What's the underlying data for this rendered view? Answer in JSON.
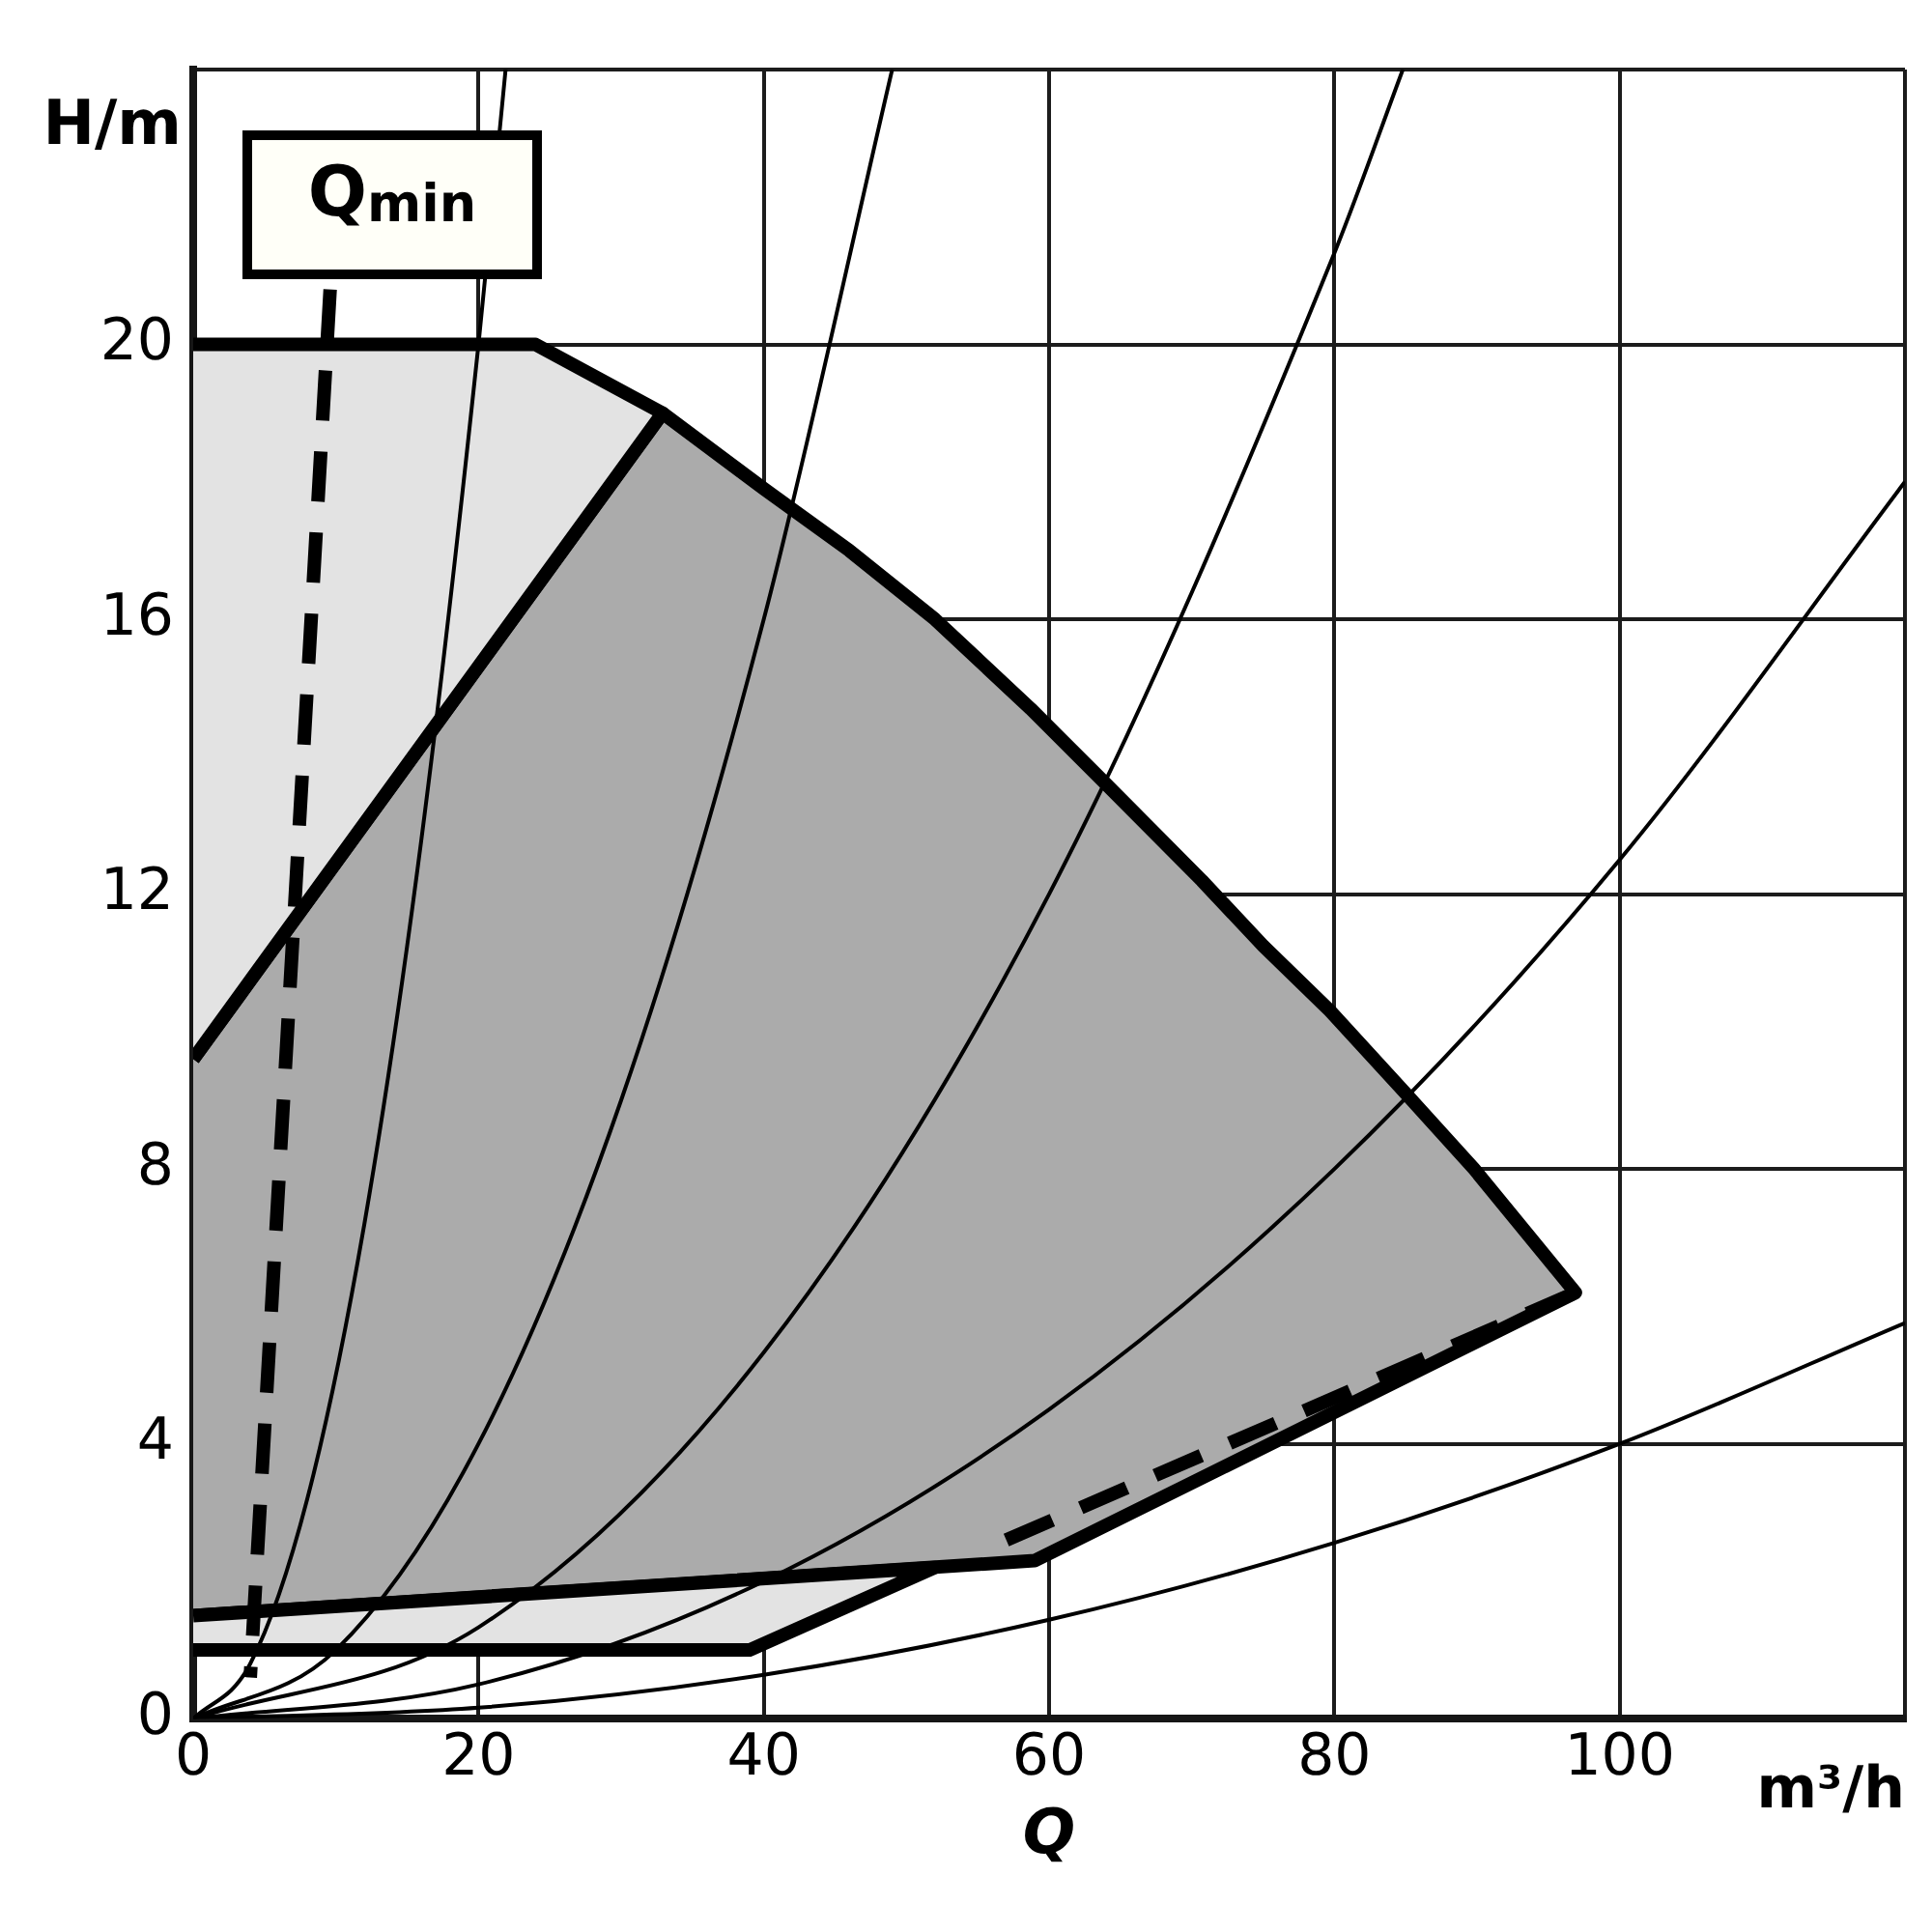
{
  "chart_data": {
    "type": "line",
    "xlabel": "Q",
    "ylabel": "H/m",
    "xlim": [
      0,
      120
    ],
    "xticks": [
      0,
      20,
      40,
      60,
      80,
      100,
      {
        "value": 120,
        "label": null
      }
    ],
    "ylim": [
      0,
      24
    ],
    "yticks": [
      0,
      4,
      8,
      12,
      16,
      20,
      {
        "value": 24,
        "label": null
      }
    ],
    "grid": true,
    "legend": false,
    "marker": "none",
    "annotations": [
      "Q$_{min}$",
      "m³/h"
    ],
    "series": [
      {
        "type": "area",
        "color": "#ababab",
        "x": [
          0,
          32.9,
          40,
          46,
          52,
          58.7,
          64,
          70.7,
          75,
          79.7,
          85,
          89.8,
          96.9,
          59,
          0
        ],
        "values": [
          9.6,
          19,
          17.9,
          17.0,
          16.0,
          14.7,
          13.6,
          12.2,
          11.25,
          10.3,
          9.1,
          8,
          6.2,
          2.3,
          1.5
        ]
      },
      {
        "type": "area",
        "color": "#e3e3e3",
        "x": [
          0,
          24,
          32.9,
          0
        ],
        "values": [
          20,
          20,
          19,
          9.6
        ]
      },
      {
        "type": "area",
        "color": "#e3e3e3",
        "x": [
          0,
          39,
          52,
          0
        ],
        "values": [
          1.0,
          1.0,
          2.2,
          1.5
        ]
      },
      {
        "color": "#000000",
        "x": [
          0,
          4,
          8,
          12,
          16,
          20,
          21.9
        ],
        "values": [
          0,
          0.8,
          3.2,
          7.2,
          12.8,
          20,
          24
        ]
      },
      {
        "color": "#000000",
        "x": [
          0,
          10,
          20,
          30,
          40,
          49
        ],
        "values": [
          0,
          1,
          4,
          9,
          16,
          24
        ]
      },
      {
        "color": "#000000",
        "x": [
          0,
          20,
          40,
          60,
          80,
          84.8
        ],
        "values": [
          0,
          1.33,
          5.33,
          12,
          21.33,
          24
        ]
      },
      {
        "color": "#000000",
        "x": [
          0,
          20,
          40,
          60,
          80,
          100,
          120
        ],
        "values": [
          0,
          0.5,
          2,
          4.5,
          8,
          12.5,
          18
        ]
      },
      {
        "color": "#000000",
        "x": [
          0,
          20,
          40,
          60,
          80,
          100,
          120
        ],
        "values": [
          0,
          0.16,
          0.64,
          1.44,
          2.56,
          4,
          5.76
        ]
      },
      {
        "color": "#000000",
        "line_style": "dashed",
        "x": [
          9.6,
          6.8,
          4.0
        ],
        "values": [
          20.8,
          10.7,
          0.6
        ]
      },
      {
        "color": "#000000",
        "line_style": "dashed",
        "x": [
          57,
          77,
          96.9
        ],
        "values": [
          2.6,
          4.4,
          6.2
        ]
      }
    ]
  }
}
